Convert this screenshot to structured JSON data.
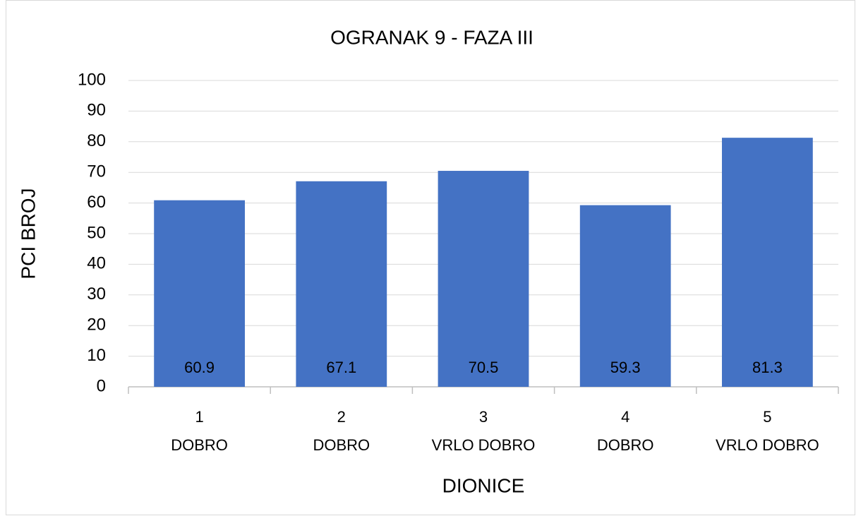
{
  "chart_data": {
    "type": "bar",
    "title": "OGRANAK 9 - FAZA III",
    "x_label": "DIONICE",
    "y_label": "PCI BROJ",
    "categories": [
      [
        "1",
        "DOBRO"
      ],
      [
        "2",
        "DOBRO"
      ],
      [
        "3",
        "VRLO DOBRO"
      ],
      [
        "4",
        "DOBRO"
      ],
      [
        "5",
        "VRLO DOBRO"
      ]
    ],
    "values": [
      60.9,
      67.1,
      70.5,
      59.3,
      81.3
    ],
    "color": "#4472c4",
    "ylim": [
      0,
      100
    ],
    "yticks": [
      0,
      10,
      20,
      30,
      40,
      50,
      60,
      70,
      80,
      90,
      100
    ],
    "grid": true
  }
}
